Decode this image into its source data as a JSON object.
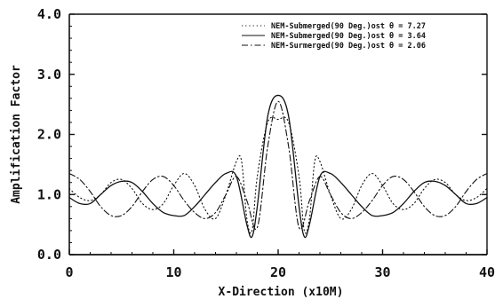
{
  "chart_data": {
    "type": "line",
    "title": "",
    "xlabel": "X-Direction (x10M)",
    "ylabel": "Amplification Factor",
    "xlim": [
      0,
      40
    ],
    "ylim": [
      0,
      4
    ],
    "xticks": [
      0,
      10,
      20,
      30,
      40
    ],
    "xtick_labels": [
      "0",
      "10",
      "20",
      "30",
      "40"
    ],
    "yticks": [
      0,
      1,
      2,
      3,
      4
    ],
    "ytick_labels": [
      "0.0",
      "1.0",
      "2.0",
      "3.0",
      "4.0"
    ],
    "grid": false,
    "legend_position": "top-right",
    "colors": {
      "line": "#111111",
      "frame": "#111111",
      "background": "#ffffff"
    },
    "series": [
      {
        "name": "NEM-Submerged(90 Deg.)ost θ = 7.27",
        "style": "dotted",
        "x": [
          0,
          1,
          2,
          3,
          4,
          5,
          6,
          7,
          8,
          9,
          10,
          11,
          12,
          13,
          14,
          15,
          16,
          16.5,
          17,
          17.5,
          18,
          19,
          20,
          21,
          22,
          22.5,
          23,
          23.5,
          24,
          25,
          26,
          27,
          28,
          29,
          30,
          31,
          32,
          33,
          34,
          35,
          36,
          37,
          38,
          39,
          40
        ],
        "y": [
          1.1,
          0.95,
          0.9,
          1.0,
          1.2,
          1.25,
          1.1,
          0.85,
          0.75,
          0.85,
          1.15,
          1.35,
          1.15,
          0.75,
          0.6,
          1.0,
          1.55,
          1.55,
          0.6,
          0.4,
          1.3,
          2.2,
          2.25,
          2.2,
          1.3,
          0.4,
          0.6,
          1.55,
          1.55,
          1.0,
          0.6,
          0.75,
          1.15,
          1.35,
          1.15,
          0.85,
          0.75,
          0.85,
          1.1,
          1.25,
          1.2,
          1.0,
          0.9,
          0.95,
          1.1
        ]
      },
      {
        "name": "NEM-Submerged(90 Deg.)ost θ = 3.64",
        "style": "solid",
        "x": [
          0,
          1,
          2,
          3,
          4,
          5,
          6,
          7,
          8,
          9,
          10,
          11,
          12,
          13,
          14,
          15,
          16,
          17,
          17.5,
          18,
          19,
          20,
          21,
          22,
          22.5,
          23,
          24,
          25,
          26,
          27,
          28,
          29,
          30,
          31,
          32,
          33,
          34,
          35,
          36,
          37,
          38,
          39,
          40
        ],
        "y": [
          0.95,
          0.85,
          0.85,
          1.0,
          1.15,
          1.22,
          1.2,
          1.05,
          0.85,
          0.7,
          0.65,
          0.65,
          0.8,
          1.0,
          1.2,
          1.35,
          1.3,
          0.5,
          0.3,
          0.8,
          2.3,
          2.65,
          2.3,
          0.8,
          0.3,
          0.5,
          1.3,
          1.35,
          1.2,
          1.0,
          0.8,
          0.65,
          0.65,
          0.7,
          0.85,
          1.05,
          1.2,
          1.22,
          1.15,
          1.0,
          0.85,
          0.85,
          0.95
        ]
      },
      {
        "name": "NEM-Surmerged(90 Deg.)ost θ = 2.06",
        "style": "dashdot",
        "x": [
          0,
          1,
          2,
          3,
          4,
          5,
          6,
          7,
          8,
          9,
          10,
          11,
          12,
          13,
          14,
          15,
          16,
          17,
          18,
          19,
          20,
          21,
          22,
          23,
          24,
          25,
          26,
          27,
          28,
          29,
          30,
          31,
          32,
          33,
          34,
          35,
          36,
          37,
          38,
          39,
          40
        ],
        "y": [
          1.35,
          1.25,
          1.05,
          0.8,
          0.65,
          0.65,
          0.8,
          1.05,
          1.25,
          1.3,
          1.15,
          0.9,
          0.7,
          0.6,
          0.7,
          1.0,
          1.3,
          0.9,
          0.45,
          1.8,
          2.55,
          1.8,
          0.45,
          0.9,
          1.3,
          1.0,
          0.7,
          0.6,
          0.7,
          0.9,
          1.15,
          1.3,
          1.25,
          1.05,
          0.8,
          0.65,
          0.65,
          0.8,
          1.05,
          1.25,
          1.35
        ]
      }
    ]
  }
}
